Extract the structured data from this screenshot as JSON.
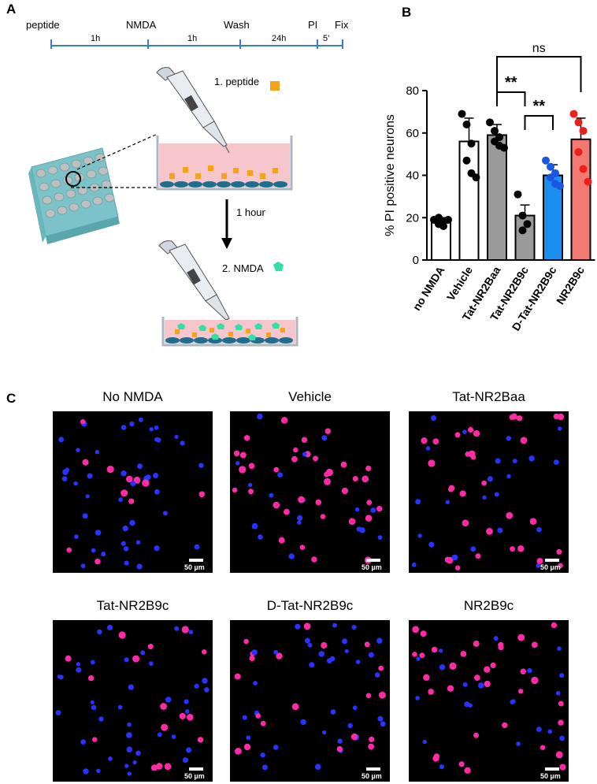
{
  "panels": {
    "a": "A",
    "b": "B",
    "c": "C"
  },
  "timeline": {
    "steps": [
      "peptide",
      "NMDA",
      "Wash",
      "PI",
      "Fix"
    ],
    "durations": [
      "1h",
      "1h",
      "24h",
      "5’"
    ]
  },
  "protocol": {
    "step1": "1. peptide",
    "step2": "2. NMDA",
    "wait": "1 hour"
  },
  "colors": {
    "peptide": "#f2a21b",
    "nmda": "#2fe0a8",
    "medium": "#f6c6cc",
    "cells": "#1f6e8c",
    "plate": "#8ccfd3",
    "timeline": "#3d7cc9"
  },
  "chart_data": {
    "type": "bar",
    "ylabel": "% PI positive neurons",
    "ylim": [
      0,
      80
    ],
    "yticks": [
      0,
      20,
      40,
      60,
      80
    ],
    "categories": [
      "no NMDA",
      "Vehicle",
      "Tat-NR2Baa",
      "Tat-NR2B9c",
      "D-Tat-NR2B9c",
      "NR2B9c"
    ],
    "values": [
      18,
      56,
      59,
      21,
      40,
      57
    ],
    "errors": [
      2,
      11,
      5,
      5,
      5,
      10
    ],
    "bar_colors": [
      "#ffffff",
      "#ffffff",
      "#9a9a9a",
      "#9a9a9a",
      "#1b8ff0",
      "#f27a72"
    ],
    "point_colors": [
      "#000000",
      "#000000",
      "#000000",
      "#000000",
      "#1a56e0",
      "#e8211c"
    ],
    "points": [
      [
        19,
        20,
        18,
        17,
        16,
        19
      ],
      [
        69,
        64,
        55,
        47,
        41,
        39
      ],
      [
        65,
        61,
        58,
        56,
        54,
        53
      ],
      [
        31,
        21,
        17,
        14
      ],
      [
        47,
        44,
        41,
        39,
        36,
        35
      ],
      [
        69,
        65,
        61,
        51,
        43,
        37
      ]
    ],
    "significance": [
      {
        "from": "Tat-NR2Baa",
        "to": "Tat-NR2B9c",
        "label": "**"
      },
      {
        "from": "Tat-NR2B9c",
        "to": "D-Tat-NR2B9c",
        "label": "**"
      },
      {
        "from": "Tat-NR2Baa",
        "to": "NR2B9c",
        "label": "ns"
      }
    ]
  },
  "micrographs": [
    {
      "title": "No NMDA",
      "scale": "50 µm",
      "red_fraction": 0.15
    },
    {
      "title": "Vehicle",
      "scale": "50 µm",
      "red_fraction": 0.5
    },
    {
      "title": "Tat-NR2Baa",
      "scale": "50 µm",
      "red_fraction": 0.6
    },
    {
      "title": "Tat-NR2B9c",
      "scale": "50 µm",
      "red_fraction": 0.2
    },
    {
      "title": "D-Tat-NR2B9c",
      "scale": "50 µm",
      "red_fraction": 0.4
    },
    {
      "title": "NR2B9c",
      "scale": "50 µm",
      "red_fraction": 0.55
    }
  ]
}
